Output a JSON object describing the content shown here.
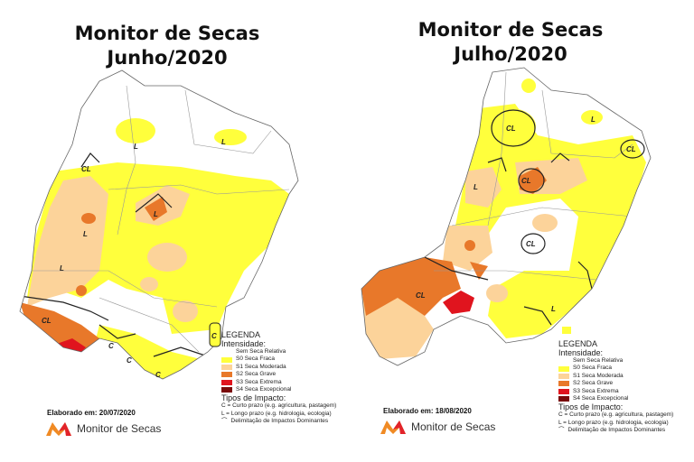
{
  "maps": [
    {
      "title_line1": "Monitor de Secas",
      "title_line2": "Junho/2020",
      "elaborado": "Elaborado em: 20/07/2020",
      "labels": [
        "L",
        "CL",
        "L",
        "L",
        "L",
        "L",
        "CL",
        "C",
        "C",
        "C",
        "C"
      ]
    },
    {
      "title_line1": "Monitor de Secas",
      "title_line2": "Julho/2020",
      "elaborado": "Elaborado em: 18/08/2020",
      "labels": [
        "CL",
        "L",
        "CL",
        "CL",
        "L",
        "CL",
        "CL",
        "L"
      ]
    }
  ],
  "legend": {
    "title": "LEGENDA",
    "intensity_label": "Intensidade:",
    "items": [
      {
        "label": "Sem Seca Relativa",
        "color": "#ffffff"
      },
      {
        "label": "S0 Seca Fraca",
        "color": "#ffff3c"
      },
      {
        "label": "S1 Seca Moderada",
        "color": "#fcd39a"
      },
      {
        "label": "S2 Seca Grave",
        "color": "#e8782a"
      },
      {
        "label": "S3 Seca Extrema",
        "color": "#e0141e"
      },
      {
        "label": "S4 Seca Excepcional",
        "color": "#7a0a0a"
      }
    ],
    "impact_title": "Tipos de Impacto:",
    "impact_c": "C = Curto prazo (e.g. agricultura, pastagem)",
    "impact_l": "L = Longo prazo (e.g. hidrologia, ecologia)",
    "delimitation": "Delimitação de Impactos Dominantes"
  },
  "brand": "Monitor de Secas"
}
